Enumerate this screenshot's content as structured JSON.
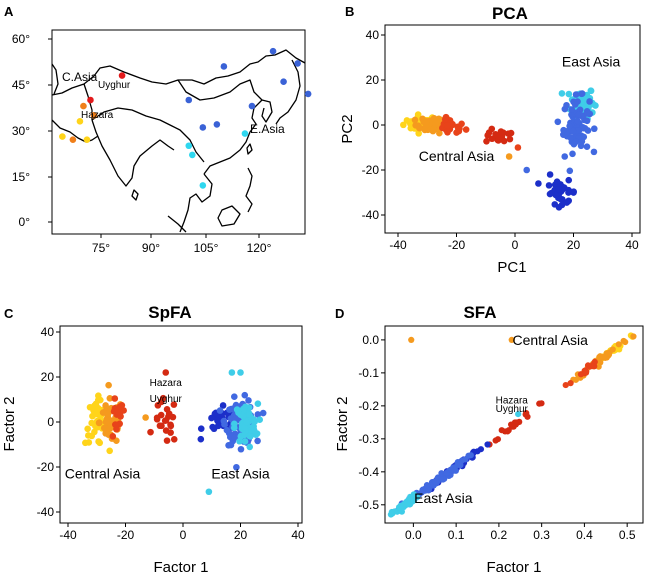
{
  "panels": {
    "A": {
      "label": "A"
    },
    "B": {
      "label": "B"
    },
    "C": {
      "label": "C"
    },
    "D": {
      "label": "D"
    }
  },
  "map": {
    "lat_ticks": [
      "60°",
      "45°",
      "30°",
      "15°",
      "0°"
    ],
    "lon_ticks": [
      "75°",
      "90°",
      "105°",
      "120°"
    ],
    "labels": {
      "casia": "C.Asia",
      "uyghur": "Uyghur",
      "hazara": "Hazara",
      "easia": "E.Asia"
    },
    "colors": {
      "red": "#e31a1c",
      "orange": "#f07f1a",
      "yellow": "#ffd41a",
      "blue": "#3a62d6",
      "lightblue": "#2fd7ef"
    },
    "sites": [
      {
        "lon": 81,
        "lat": 48,
        "c": "red"
      },
      {
        "lon": 72,
        "lat": 40,
        "c": "red"
      },
      {
        "lon": 70,
        "lat": 38,
        "c": "orange"
      },
      {
        "lon": 73,
        "lat": 35,
        "c": "orange"
      },
      {
        "lon": 69,
        "lat": 33,
        "c": "yellow"
      },
      {
        "lon": 64,
        "lat": 28,
        "c": "yellow"
      },
      {
        "lon": 67,
        "lat": 27,
        "c": "orange"
      },
      {
        "lon": 71,
        "lat": 27,
        "c": "yellow"
      },
      {
        "lon": 124,
        "lat": 56,
        "c": "blue"
      },
      {
        "lon": 131,
        "lat": 52,
        "c": "blue"
      },
      {
        "lon": 110,
        "lat": 51,
        "c": "blue"
      },
      {
        "lon": 127,
        "lat": 46,
        "c": "blue"
      },
      {
        "lon": 134,
        "lat": 42,
        "c": "blue"
      },
      {
        "lon": 100,
        "lat": 40,
        "c": "blue"
      },
      {
        "lon": 118,
        "lat": 38,
        "c": "blue"
      },
      {
        "lon": 108,
        "lat": 32,
        "c": "blue"
      },
      {
        "lon": 104,
        "lat": 31,
        "c": "blue"
      },
      {
        "lon": 116,
        "lat": 29,
        "c": "lightblue"
      },
      {
        "lon": 100,
        "lat": 25,
        "c": "lightblue"
      },
      {
        "lon": 101,
        "lat": 22,
        "c": "lightblue"
      },
      {
        "lon": 104,
        "lat": 12,
        "c": "lightblue"
      }
    ]
  },
  "chart_data": [
    {
      "id": "B",
      "type": "scatter",
      "title": "PCA",
      "xlabel": "PC1",
      "ylabel": "PC2",
      "xlim": [
        -40,
        40
      ],
      "ylim": [
        -40,
        40
      ],
      "xticks": [
        -40,
        -20,
        0,
        20,
        40
      ],
      "yticks": [
        -40,
        -20,
        0,
        20,
        40
      ],
      "annotations": [
        {
          "text": "East Asia",
          "x": 26,
          "y": 26
        },
        {
          "text": "Central Asia",
          "x": -20,
          "y": -16
        }
      ],
      "clusters": [
        {
          "name": "Central Asia (yellow)",
          "color": "#ffd41a",
          "cx": -32,
          "cy": 1,
          "sx": 3,
          "sy": 1.8,
          "n": 30
        },
        {
          "name": "Central Asia (orange)",
          "color": "#f59a1e",
          "cx": -28,
          "cy": 0,
          "sx": 3,
          "sy": 1.8,
          "n": 40
        },
        {
          "name": "Central Asia (red)",
          "color": "#e8431a",
          "cx": -22,
          "cy": -1,
          "sx": 2.5,
          "sy": 1.8,
          "n": 25
        },
        {
          "name": "Hazara/Uyghur",
          "color": "#d42a12",
          "cx": -5,
          "cy": -5,
          "sx": 2.5,
          "sy": 1.5,
          "n": 18
        },
        {
          "name": "East Asia (light blue)",
          "color": "#3fcde8",
          "cx": 23,
          "cy": 10,
          "sx": 2,
          "sy": 3.5,
          "n": 80
        },
        {
          "name": "East Asia (blue)",
          "color": "#4169e1",
          "cx": 21,
          "cy": 0,
          "sx": 2.2,
          "sy": 6,
          "n": 80
        },
        {
          "name": "East Asia (dark blue)",
          "color": "#1c2fc9",
          "cx": 16,
          "cy": -30,
          "sx": 2.5,
          "sy": 2.5,
          "n": 30
        }
      ]
    },
    {
      "id": "C",
      "type": "scatter",
      "title": "SpFA",
      "xlabel": "Factor 1",
      "ylabel": "Factor 2",
      "xlim": [
        -40,
        40
      ],
      "ylim": [
        -40,
        40
      ],
      "xticks": [
        -40,
        -20,
        0,
        20,
        40
      ],
      "yticks": [
        -40,
        -20,
        0,
        20,
        40
      ],
      "annotations": [
        {
          "text": "Central Asia",
          "x": -28,
          "y": -25
        },
        {
          "text": "East Asia",
          "x": 20,
          "y": -25
        },
        {
          "text": "Hazara",
          "x": -6,
          "y": 16
        },
        {
          "text": "Uyghur",
          "x": -6,
          "y": 9
        }
      ],
      "clusters": [
        {
          "name": "Central Asia (yellow)",
          "color": "#ffd41a",
          "cx": -30,
          "cy": 0,
          "sx": 2,
          "sy": 5,
          "n": 40
        },
        {
          "name": "Central Asia (orange)",
          "color": "#f59a1e",
          "cx": -25,
          "cy": 0,
          "sx": 2,
          "sy": 5,
          "n": 45
        },
        {
          "name": "Central Asia (red)",
          "color": "#e8431a",
          "cx": -23,
          "cy": 1,
          "sx": 1.5,
          "sy": 5,
          "n": 15
        },
        {
          "name": "Hazara/Uyghur",
          "color": "#d42a12",
          "cx": -6,
          "cy": 0,
          "sx": 2,
          "sy": 5,
          "n": 22
        },
        {
          "name": "East Asia (dark blue)",
          "color": "#1c2fc9",
          "cx": 13,
          "cy": 0,
          "sx": 3,
          "sy": 3,
          "n": 25
        },
        {
          "name": "East Asia (blue)",
          "color": "#4169e1",
          "cx": 20,
          "cy": 0,
          "sx": 2.5,
          "sy": 5,
          "n": 90
        },
        {
          "name": "East Asia (light blue)",
          "color": "#3fcde8",
          "cx": 22,
          "cy": -1,
          "sx": 2,
          "sy": 4.5,
          "n": 60
        }
      ]
    },
    {
      "id": "D",
      "type": "scatter",
      "title": "SFA",
      "xlabel": "Factor 1",
      "ylabel": "Factor 2",
      "xlim": [
        -0.05,
        0.53
      ],
      "ylim": [
        -0.54,
        0.03
      ],
      "xticks": [
        0.0,
        0.1,
        0.2,
        0.3,
        0.4,
        0.5
      ],
      "yticks": [
        0.0,
        -0.1,
        -0.2,
        -0.3,
        -0.4,
        -0.5
      ],
      "annotations": [
        {
          "text": "Central Asia",
          "x": 0.32,
          "y": -0.015
        },
        {
          "text": "East Asia",
          "x": 0.07,
          "y": -0.495
        },
        {
          "text": "Hazara",
          "x": 0.23,
          "y": -0.193
        },
        {
          "text": "Uyghur",
          "x": 0.23,
          "y": -0.218
        }
      ],
      "diagonal": {
        "x0": -0.04,
        "x1": 0.5,
        "sd": 0.006
      },
      "clusters": [
        {
          "name": "Central Asia (yellow)",
          "color": "#ffd41a",
          "cx": 0.46,
          "cy": null,
          "sx": 0.03,
          "n": 35
        },
        {
          "name": "Central Asia (orange)",
          "color": "#f59a1e",
          "cx": 0.44,
          "cy": null,
          "sx": 0.035,
          "n": 45
        },
        {
          "name": "Central Asia (red)",
          "color": "#e8431a",
          "cx": 0.4,
          "cy": null,
          "sx": 0.015,
          "n": 15
        },
        {
          "name": "Hazara/Uyghur",
          "color": "#d42a12",
          "cx": 0.24,
          "cy": null,
          "sx": 0.025,
          "n": 20
        },
        {
          "name": "East Asia (dark blue)",
          "color": "#1c2fc9",
          "cx": 0.1,
          "cy": null,
          "sx": 0.04,
          "n": 30
        },
        {
          "name": "East Asia (blue)",
          "color": "#4169e1",
          "cx": 0.04,
          "cy": null,
          "sx": 0.04,
          "n": 70
        },
        {
          "name": "East Asia (light blue)",
          "color": "#3fcde8",
          "cx": -0.02,
          "cy": null,
          "sx": 0.015,
          "n": 40
        }
      ],
      "outliers": [
        {
          "x": -0.005,
          "y": 0.0,
          "color": "#f59a1e"
        },
        {
          "x": 0.23,
          "y": 0.0,
          "color": "#f59a1e"
        },
        {
          "x": 0.245,
          "y": -0.225,
          "color": "#3fcde8"
        }
      ]
    }
  ]
}
